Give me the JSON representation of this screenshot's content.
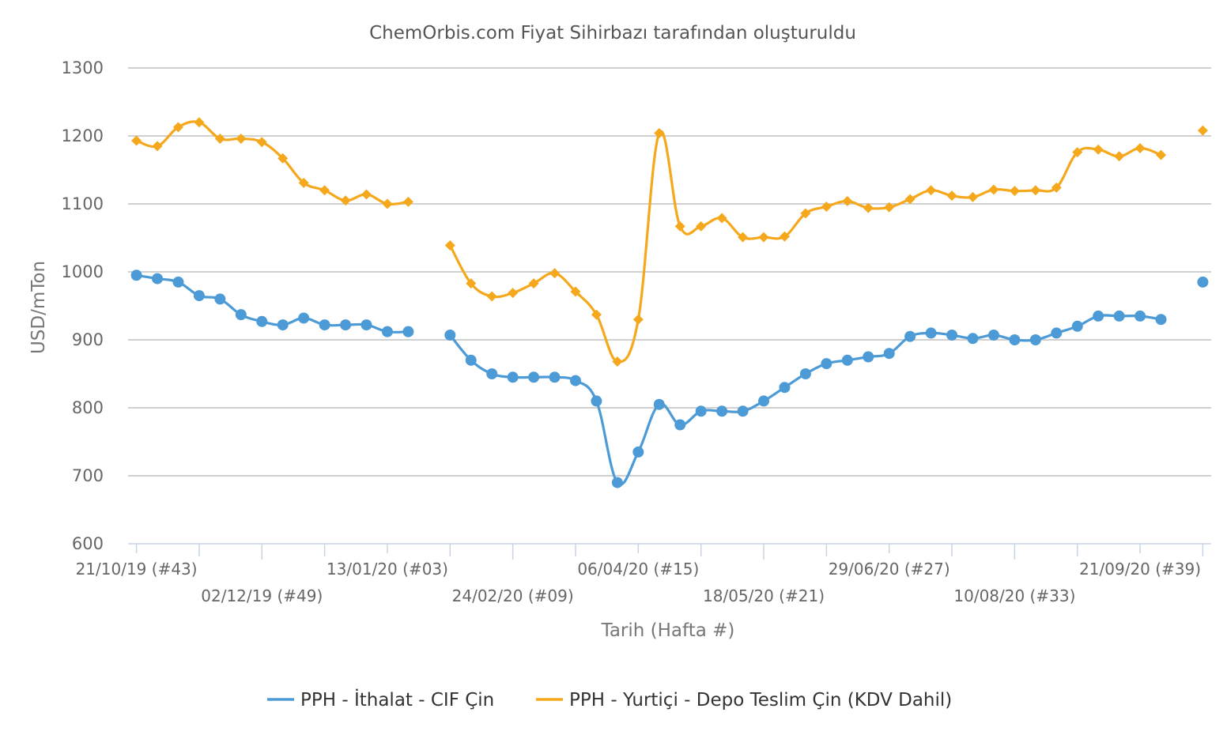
{
  "chart_data": {
    "type": "line",
    "title": "ChemOrbis.com Fiyat Sihirbazı tarafından oluşturuldu",
    "xlabel": "Tarih (Hafta #)",
    "ylabel": "USD/mTon",
    "ylim": [
      600,
      1300
    ],
    "yticks": [
      "600",
      "700",
      "800",
      "900",
      "1000",
      "1100",
      "1200",
      "1300"
    ],
    "grid": true,
    "legend_position": "bottom",
    "x_week_range": [
      43,
      92
    ],
    "x_ticks_top": [
      {
        "week": 43,
        "label": "21/10/19 (#43)"
      },
      {
        "week": 55,
        "label": "13/01/20 (#03)"
      },
      {
        "week": 67,
        "label": "06/04/20 (#15)"
      },
      {
        "week": 79,
        "label": "29/06/20 (#27)"
      },
      {
        "week": 91,
        "label": "21/09/20 (#39)"
      }
    ],
    "x_ticks_bottom": [
      {
        "week": 49,
        "label": "02/12/19 (#49)"
      },
      {
        "week": 61,
        "label": "24/02/20 (#09)"
      },
      {
        "week": 73,
        "label": "18/05/20 (#21)"
      },
      {
        "week": 85,
        "label": "10/08/20 (#33)"
      }
    ],
    "series": [
      {
        "name": "PPH - İthalat - CIF Çin",
        "color": "#4c9bd6",
        "marker": "circle",
        "points": [
          [
            43,
            995
          ],
          [
            44,
            990
          ],
          [
            45,
            985
          ],
          [
            46,
            965
          ],
          [
            47,
            960
          ],
          [
            48,
            937
          ],
          [
            49,
            927
          ],
          [
            50,
            922
          ],
          [
            51,
            932
          ],
          [
            52,
            922
          ],
          [
            53,
            922
          ],
          [
            54,
            922
          ],
          [
            55,
            912
          ],
          [
            56,
            912
          ],
          [
            null,
            null
          ],
          [
            58,
            907
          ],
          [
            59,
            870
          ],
          [
            60,
            850
          ],
          [
            61,
            845
          ],
          [
            62,
            845
          ],
          [
            63,
            845
          ],
          [
            64,
            840
          ],
          [
            65,
            810
          ],
          [
            66,
            690
          ],
          [
            67,
            735
          ],
          [
            68,
            805
          ],
          [
            69,
            775
          ],
          [
            70,
            795
          ],
          [
            71,
            795
          ],
          [
            72,
            795
          ],
          [
            73,
            810
          ],
          [
            74,
            830
          ],
          [
            75,
            850
          ],
          [
            76,
            865
          ],
          [
            77,
            870
          ],
          [
            78,
            875
          ],
          [
            79,
            880
          ],
          [
            80,
            905
          ],
          [
            81,
            910
          ],
          [
            82,
            907
          ],
          [
            83,
            902
          ],
          [
            84,
            907
          ],
          [
            85,
            900
          ],
          [
            86,
            900
          ],
          [
            87,
            910
          ],
          [
            88,
            920
          ],
          [
            89,
            935
          ],
          [
            90,
            935
          ],
          [
            91,
            935
          ],
          [
            92,
            930
          ],
          [
            null,
            null
          ],
          [
            94,
            985
          ]
        ]
      },
      {
        "name": "PPH - Yurtiçi - Depo Teslim Çin  (KDV Dahil)",
        "color": "#f5a81c",
        "marker": "diamond",
        "points": [
          [
            43,
            1193
          ],
          [
            44,
            1185
          ],
          [
            45,
            1213
          ],
          [
            46,
            1220
          ],
          [
            47,
            1196
          ],
          [
            48,
            1196
          ],
          [
            49,
            1191
          ],
          [
            50,
            1167
          ],
          [
            51,
            1131
          ],
          [
            52,
            1120
          ],
          [
            53,
            1105
          ],
          [
            54,
            1114
          ],
          [
            55,
            1100
          ],
          [
            56,
            1103
          ],
          [
            null,
            null
          ],
          [
            58,
            1039
          ],
          [
            59,
            983
          ],
          [
            60,
            964
          ],
          [
            61,
            969
          ],
          [
            62,
            983
          ],
          [
            63,
            998
          ],
          [
            64,
            971
          ],
          [
            65,
            937
          ],
          [
            66,
            868
          ],
          [
            67,
            930
          ],
          [
            68,
            1204
          ],
          [
            69,
            1067
          ],
          [
            70,
            1067
          ],
          [
            71,
            1079
          ],
          [
            72,
            1051
          ],
          [
            73,
            1051
          ],
          [
            74,
            1052
          ],
          [
            75,
            1086
          ],
          [
            76,
            1096
          ],
          [
            77,
            1104
          ],
          [
            78,
            1094
          ],
          [
            79,
            1095
          ],
          [
            80,
            1107
          ],
          [
            81,
            1120
          ],
          [
            82,
            1112
          ],
          [
            83,
            1110
          ],
          [
            84,
            1121
          ],
          [
            85,
            1119
          ],
          [
            86,
            1120
          ],
          [
            87,
            1124
          ],
          [
            88,
            1176
          ],
          [
            89,
            1180
          ],
          [
            90,
            1170
          ],
          [
            91,
            1182
          ],
          [
            92,
            1172
          ],
          [
            null,
            null
          ],
          [
            94,
            1208
          ]
        ]
      }
    ]
  }
}
